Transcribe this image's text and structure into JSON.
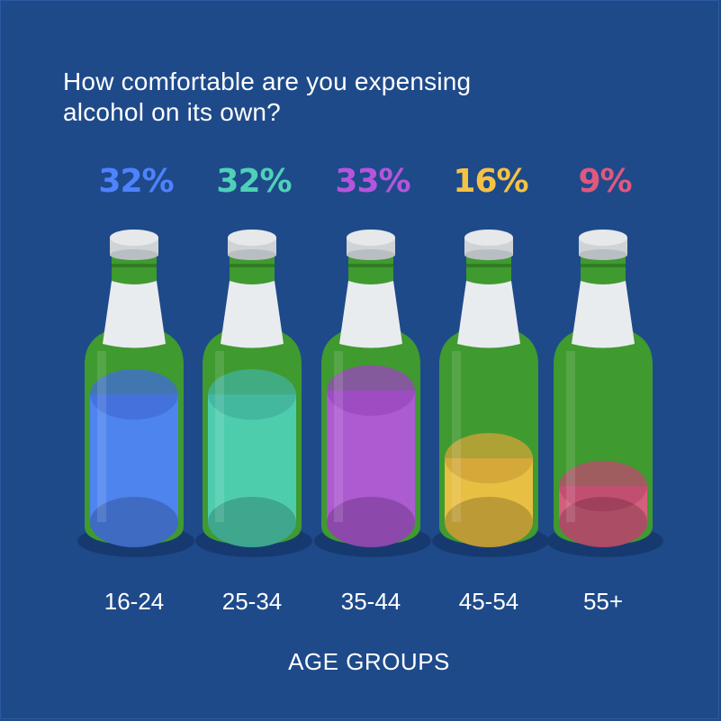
{
  "chart_data": {
    "type": "bar",
    "title": "How comfortable are you expensing alcohol on its own?",
    "xlabel": "AGE GROUPS",
    "ylabel": "",
    "ylim": [
      0,
      35
    ],
    "categories": [
      "16-24",
      "25-34",
      "35-44",
      "45-54",
      "55+"
    ],
    "values": [
      32,
      32,
      33,
      16,
      9
    ],
    "value_labels": [
      "32%",
      "32%",
      "33%",
      "16%",
      "9%"
    ],
    "colors": [
      "#4f82ff",
      "#4fd1b8",
      "#b556e0",
      "#f5c244",
      "#e05a84"
    ],
    "label_colors": [
      "#4f82ff",
      "#4fd1b8",
      "#b555dc",
      "#f5c244",
      "#e0587f"
    ]
  },
  "colors": {
    "background": "#1e4a8a",
    "bottle_glass": "#3f9a2f",
    "bottle_glass_dark": "#2f7d22",
    "bottle_label": "#e9ecef",
    "bottle_cap": "#e6e8ea"
  }
}
